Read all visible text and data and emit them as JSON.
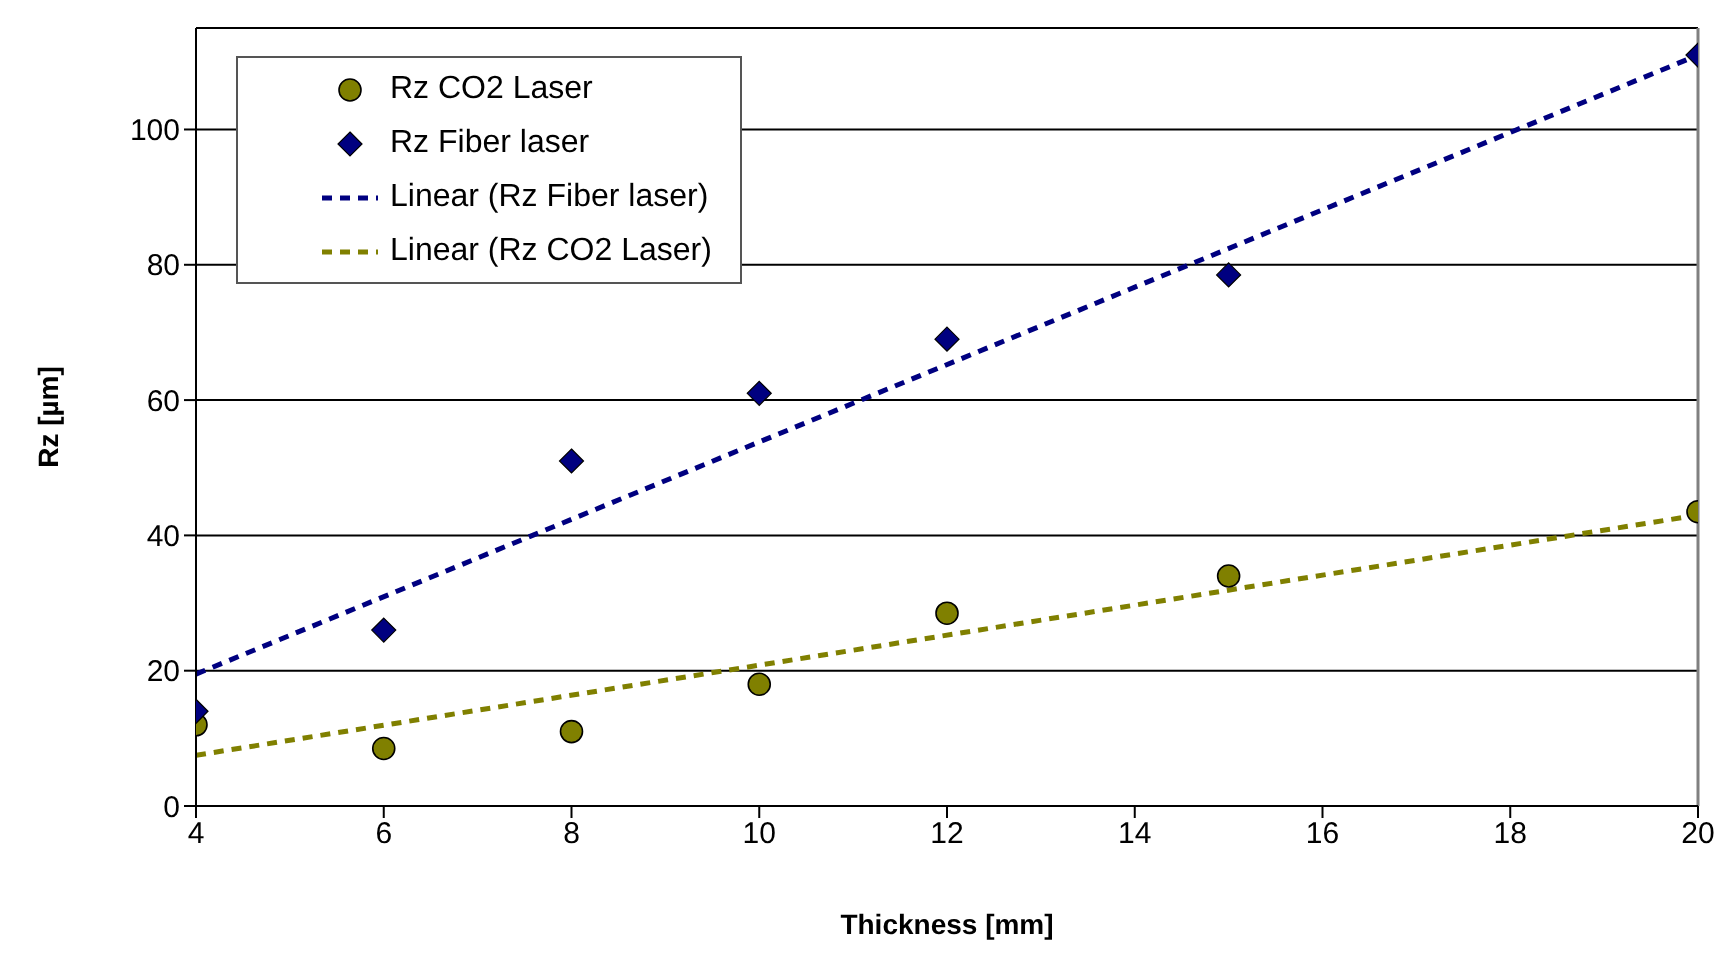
{
  "chart_data": {
    "type": "scatter",
    "xlabel": "Thickness [mm]",
    "ylabel": "Rz [µm]",
    "xlim": [
      4,
      20
    ],
    "xticks": [
      4,
      6,
      8,
      10,
      12,
      14,
      16,
      18,
      20
    ],
    "ylim": [
      0,
      115
    ],
    "yticks": [
      0,
      20,
      40,
      60,
      80,
      100
    ],
    "grid": "y",
    "legend": "top left",
    "series": [
      {
        "name": "Rz CO2 Laser",
        "marker": "circle",
        "color": "#808000",
        "x": [
          4,
          6,
          8,
          10,
          12,
          15,
          20
        ],
        "values": [
          12,
          8.5,
          11,
          18,
          28.5,
          34,
          43.5
        ]
      },
      {
        "name": "Rz Fiber laser",
        "marker": "diamond",
        "color": "#000080",
        "x": [
          4,
          6,
          8,
          10,
          12,
          15,
          20
        ],
        "values": [
          14,
          26,
          51,
          61,
          69,
          78.5,
          111
        ]
      },
      {
        "name": "Linear (Rz Fiber laser)",
        "type": "line",
        "line_style": "dashed",
        "color": "#000080",
        "x": [
          4,
          20
        ],
        "values": [
          19.5,
          111
        ]
      },
      {
        "name": "Linear (Rz CO2 Laser)",
        "type": "line",
        "line_style": "dashed",
        "color": "#808000",
        "x": [
          4,
          20
        ],
        "values": [
          7.5,
          43
        ]
      }
    ]
  }
}
